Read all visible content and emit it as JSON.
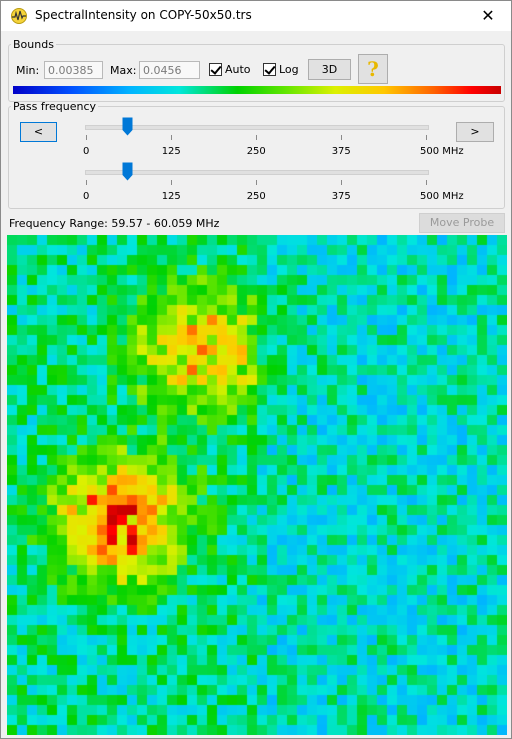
{
  "window": {
    "title": "SpectralIntensity on COPY-50x50.trs",
    "close_glyph": "✕",
    "app_icon": "spectrum-icon"
  },
  "bounds": {
    "legend": "Bounds",
    "min_label": "Min:",
    "min_value": "0.00385",
    "max_label": "Max:",
    "max_value": "0.0456",
    "auto_label": "Auto",
    "auto_checked": true,
    "log_label": "Log",
    "log_checked": true,
    "three_d_label": "3D",
    "help_glyph": "?"
  },
  "pass_frequency": {
    "legend": "Pass frequency",
    "prev_label": "<",
    "next_label": ">",
    "slider1_value_mhz": 59.57,
    "slider2_value_mhz": 60.059,
    "max_mhz": 500,
    "ticks": [
      "0",
      "125",
      "250",
      "375",
      "500 MHz"
    ]
  },
  "frequency_range": {
    "text": "Frequency Range: 59.57 - 60.059 MHz"
  },
  "move_probe": {
    "label": "Move Probe",
    "enabled": false
  },
  "heatmap": {
    "rows": 50,
    "cols": 50,
    "scale": "log",
    "hotspots": [
      {
        "row_center": 28,
        "col_center": 11,
        "intensity": 1.0
      },
      {
        "row_center": 11,
        "col_center": 19,
        "intensity": 0.8
      }
    ]
  },
  "colors": {
    "accent": "#0078d7",
    "thumb": "#0078d7",
    "colorbar_low": "#0000c8",
    "colorbar_high": "#c80000"
  }
}
